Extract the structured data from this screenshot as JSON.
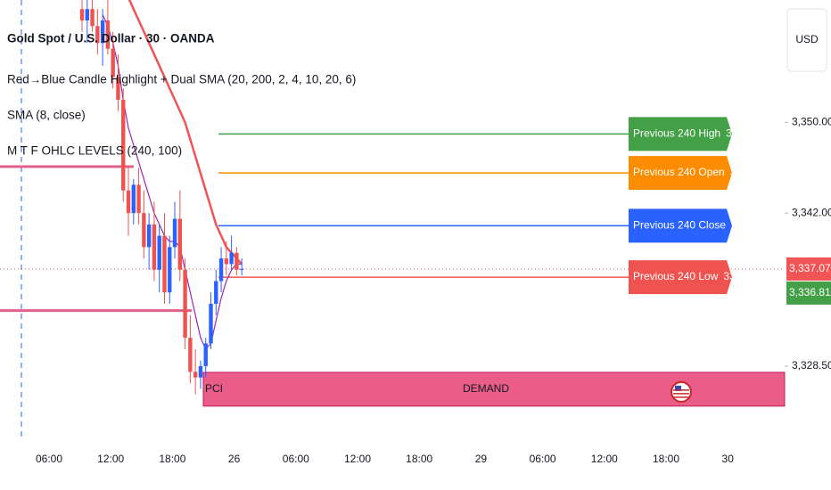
{
  "chart_data": {
    "type": "candlestick",
    "title": "Gold Spot / U.S. Dollar · 30 · OANDA",
    "indicators": [
      "Red→Blue Candle Highlight + Dual SMA (20, 200, 2, 4, 10, 20, 6)",
      "SMA (8, close)",
      "M T F OHLC LEVELS (240, 100)"
    ],
    "currency": "USD",
    "up_color": "#2962ff",
    "down_color": "#ef5350",
    "open": [
      3360,
      3359,
      3360,
      3358.5,
      3357,
      3359,
      3356.5,
      3354,
      3352,
      3344,
      3342,
      3344.5,
      3342,
      3339,
      3341,
      3337,
      3340,
      3335,
      3339,
      3341.5,
      3337,
      3331,
      3328,
      3327.5,
      3328.5,
      3330.5,
      3334,
      3336,
      3338,
      3337.5,
      3338.5,
      3337
    ],
    "high": [
      3362,
      3361,
      3362,
      3360,
      3360,
      3361,
      3358,
      3356,
      3353,
      3346,
      3345,
      3346,
      3344,
      3342,
      3343,
      3341,
      3342,
      3340,
      3343,
      3344,
      3338,
      3333,
      3330,
      3329,
      3331,
      3335,
      3337,
      3339,
      3339.5,
      3340,
      3339,
      3338
    ],
    "low": [
      3358,
      3357,
      3358,
      3356,
      3355,
      3356,
      3353,
      3351,
      3343,
      3340,
      3341,
      3341,
      3338,
      3337,
      3336,
      3335,
      3334,
      3334,
      3338,
      3336,
      3330,
      3327,
      3326,
      3326.5,
      3327.5,
      3330,
      3333,
      3335,
      3336.5,
      3337,
      3336.5,
      3336.5
    ],
    "close": [
      3359,
      3360,
      3358.5,
      3357,
      3359,
      3356.5,
      3354,
      3352,
      3344,
      3342,
      3344.5,
      3342,
      3339,
      3341,
      3337,
      3340,
      3335,
      3339,
      3341.5,
      3337,
      3331,
      3328,
      3327.5,
      3328.5,
      3330.5,
      3334,
      3336,
      3338,
      3337.5,
      3338.5,
      3337,
      3337.07
    ],
    "series": [
      {
        "color": "#f05454",
        "values": [
          null,
          null,
          null,
          null,
          null,
          null,
          null,
          null,
          3362,
          3361,
          3360,
          3359,
          3358,
          3357,
          3356,
          3355,
          3354,
          3353,
          3352,
          3351,
          3350,
          3348.5,
          3347,
          3345.5,
          3344,
          3342.5,
          3341,
          3340,
          3339,
          3338.5,
          3338,
          3337.5
        ]
      },
      {
        "color": "#9c27b0",
        "values": [
          null,
          null,
          null,
          null,
          3359.5,
          3358.5,
          3357,
          3355,
          3352,
          3349.5,
          3348,
          3346.5,
          3345,
          3343.5,
          3342,
          3341,
          3340,
          3339.5,
          3339.5,
          3339,
          3337,
          3335,
          3333,
          3331,
          3330,
          3330.5,
          3332.5,
          3334.5,
          3336,
          3337,
          3337.5,
          3337.5
        ]
      }
    ],
    "hlines": [
      {
        "value": 3346.1,
        "color": "#e0608a"
      },
      {
        "value": 3333.4,
        "color": "#e0608a"
      }
    ],
    "levels": [
      {
        "name": "Previous 240 High",
        "value": 3348.985,
        "color": "#43a047"
      },
      {
        "name": "Previous 240 Open",
        "value": 3345.54,
        "color": "#fb8c00"
      },
      {
        "name": "Previous 240 Close",
        "value": 3340.885,
        "color": "#2962ff"
      },
      {
        "name": "Previous 240 Low",
        "value": 3336.345,
        "color": "#ef5350"
      }
    ],
    "zone": {
      "top": 3327.95,
      "bottom": 3324.97,
      "color": "#e94b7c",
      "left_label": "PCI",
      "label": "DEMAND"
    },
    "last_price": {
      "value": 3337.07,
      "label": "3,337.070",
      "color": "#f05454"
    },
    "second_price": {
      "value": 3336.811,
      "label": "3,336.811",
      "color": "#43a047"
    },
    "ylim": [
      3321.5,
      3360.8
    ],
    "yticks": [
      {
        "value": 3350,
        "label": "3,350.000"
      },
      {
        "value": 3342,
        "label": "3,342.000"
      },
      {
        "value": 3328.5,
        "label": "3,328.500"
      }
    ],
    "xticks": [
      "06:00",
      "12:00",
      "18:00",
      "26",
      "06:00",
      "12:00",
      "18:00",
      "29",
      "06:00",
      "12:00",
      "18:00",
      "30"
    ]
  }
}
